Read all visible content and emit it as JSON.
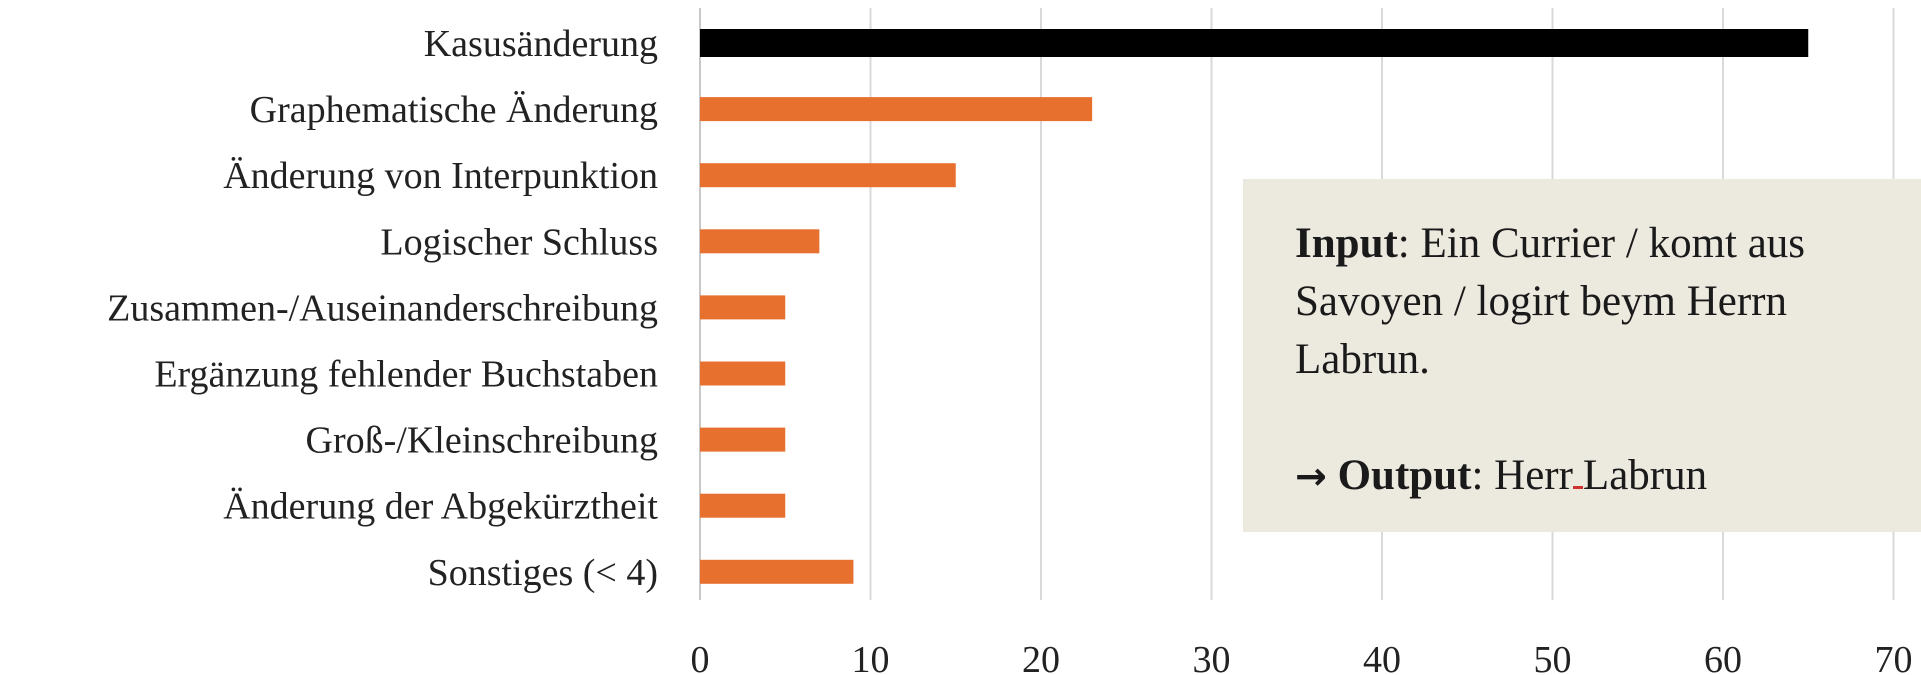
{
  "chart_data": {
    "type": "bar",
    "orientation": "horizontal",
    "categories": [
      "Kasusänderung",
      "Graphematische Änderung",
      "Änderung von Interpunktion",
      "Logischer Schluss",
      "Zusammen-/Auseinanderschreibung",
      "Ergänzung fehlender Buchstaben",
      "Groß-/Kleinschreibung",
      "Änderung der Abgekürztheit",
      "Sonstiges (< 4)"
    ],
    "values": [
      65,
      23,
      15,
      7,
      5,
      5,
      5,
      5,
      9
    ],
    "bar_colors": [
      "#000000",
      "#e8702f",
      "#e8702f",
      "#e8702f",
      "#e8702f",
      "#e8702f",
      "#e8702f",
      "#e8702f",
      "#e8702f"
    ],
    "xlim": [
      0,
      70
    ],
    "xticks": [
      0,
      10,
      20,
      30,
      40,
      50,
      60,
      70
    ],
    "grid": true,
    "title": "",
    "xlabel": "",
    "ylabel": ""
  },
  "callout": {
    "input_label": "Input",
    "input_text_1": ": Ein Currier / komt aus",
    "input_text_2": "Savoyen / logirt beym Herrn",
    "input_text_3": "Labrun.",
    "arrow": "→",
    "output_label": "Output",
    "output_prefix": ": Herr",
    "output_suffix": "Labrun"
  },
  "colors": {
    "accent_bar": "#e8702f",
    "highlight_bar": "#000000",
    "grid": "#d9d9d9",
    "callout_bg": "#ece9df"
  }
}
